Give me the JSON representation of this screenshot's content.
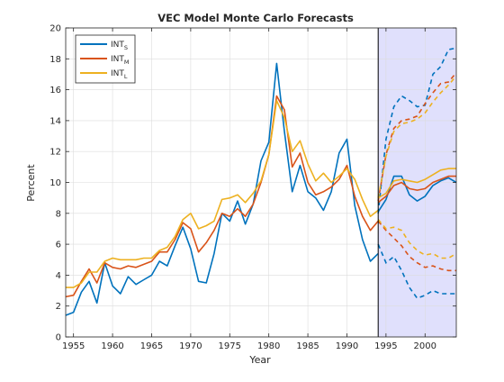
{
  "chart_data": {
    "type": "line",
    "title": "VEC Model Monte Carlo Forecasts",
    "xlabel": "Year",
    "ylabel": "Percent",
    "xlim": [
      1954,
      2004
    ],
    "ylim": [
      0,
      20
    ],
    "xticks": [
      1955,
      1960,
      1965,
      1970,
      1975,
      1980,
      1985,
      1990,
      1995,
      2000
    ],
    "yticks": [
      0,
      2,
      4,
      6,
      8,
      10,
      12,
      14,
      16,
      18,
      20
    ],
    "grid": true,
    "legend_position": "top-left",
    "forecast_start": 1994,
    "forecast_shading_color": "#e0e0fc",
    "series": [
      {
        "name": "INT_S",
        "legend_main": "INT",
        "legend_sub": "S",
        "color": "#0072bd",
        "x": [
          1954,
          1955,
          1956,
          1957,
          1958,
          1959,
          1960,
          1961,
          1962,
          1963,
          1964,
          1965,
          1966,
          1967,
          1968,
          1969,
          1970,
          1971,
          1972,
          1973,
          1974,
          1975,
          1976,
          1977,
          1978,
          1979,
          1980,
          1981,
          1982,
          1983,
          1984,
          1985,
          1986,
          1987,
          1988,
          1989,
          1990,
          1991,
          1992,
          1993,
          1994
        ],
        "values": [
          1.4,
          1.6,
          2.9,
          3.6,
          2.2,
          4.8,
          3.3,
          2.8,
          3.9,
          3.4,
          3.7,
          4.0,
          4.9,
          4.6,
          5.9,
          7.1,
          5.7,
          3.6,
          3.5,
          5.4,
          8.0,
          7.5,
          8.8,
          7.3,
          8.6,
          11.4,
          12.6,
          17.7,
          13.3,
          9.4,
          11.1,
          9.4,
          9.0,
          8.2,
          9.4,
          11.9,
          12.8,
          8.5,
          6.3,
          4.9,
          5.4
        ]
      },
      {
        "name": "INT_M",
        "legend_main": "INT",
        "legend_sub": "M",
        "color": "#d95319",
        "x": [
          1954,
          1955,
          1956,
          1957,
          1958,
          1959,
          1960,
          1961,
          1962,
          1963,
          1964,
          1965,
          1966,
          1967,
          1968,
          1969,
          1970,
          1971,
          1972,
          1973,
          1974,
          1975,
          1976,
          1977,
          1978,
          1979,
          1980,
          1981,
          1982,
          1983,
          1984,
          1985,
          1986,
          1987,
          1988,
          1989,
          1990,
          1991,
          1992,
          1993,
          1994
        ],
        "values": [
          2.6,
          2.7,
          3.6,
          4.4,
          3.5,
          4.8,
          4.5,
          4.4,
          4.6,
          4.5,
          4.7,
          4.9,
          5.5,
          5.5,
          6.3,
          7.4,
          7.0,
          5.5,
          6.1,
          6.9,
          8.0,
          7.8,
          8.3,
          7.8,
          8.6,
          10.0,
          11.8,
          15.6,
          14.7,
          11.0,
          11.9,
          10.0,
          9.2,
          9.4,
          9.7,
          10.2,
          11.1,
          9.1,
          7.8,
          6.9,
          7.5
        ]
      },
      {
        "name": "INT_L",
        "legend_main": "INT",
        "legend_sub": "L",
        "color": "#edb120",
        "x": [
          1954,
          1955,
          1956,
          1957,
          1958,
          1959,
          1960,
          1961,
          1962,
          1963,
          1964,
          1965,
          1966,
          1967,
          1968,
          1969,
          1970,
          1971,
          1972,
          1973,
          1974,
          1975,
          1976,
          1977,
          1978,
          1979,
          1980,
          1981,
          1982,
          1983,
          1984,
          1985,
          1986,
          1987,
          1988,
          1989,
          1990,
          1991,
          1992,
          1993,
          1994
        ],
        "values": [
          3.2,
          3.2,
          3.5,
          4.2,
          4.2,
          4.9,
          5.1,
          5.0,
          5.0,
          5.0,
          5.1,
          5.1,
          5.6,
          5.8,
          6.5,
          7.6,
          8.0,
          7.0,
          7.2,
          7.5,
          8.9,
          9.0,
          9.2,
          8.7,
          9.3,
          10.1,
          11.8,
          15.3,
          14.2,
          12.0,
          12.7,
          11.2,
          10.1,
          10.6,
          10.0,
          10.4,
          10.9,
          10.2,
          8.9,
          7.8,
          8.2
        ]
      }
    ],
    "forecasts": [
      {
        "series": "INT_S",
        "x": [
          1994,
          1995,
          1996,
          1997,
          1998,
          1999,
          2000,
          2001,
          2002,
          2003,
          2004
        ],
        "mean": [
          8.1,
          8.9,
          10.4,
          10.4,
          9.2,
          8.8,
          9.1,
          9.8,
          10.1,
          10.3,
          10.0
        ],
        "upper": [
          8.0,
          12.8,
          14.9,
          15.6,
          15.3,
          14.9,
          15.0,
          17.0,
          17.5,
          18.6,
          18.7
        ],
        "lower": [
          6.0,
          4.8,
          5.2,
          4.3,
          3.2,
          2.5,
          2.7,
          3.0,
          2.8,
          2.8,
          2.8
        ]
      },
      {
        "series": "INT_M",
        "x": [
          1994,
          1995,
          1996,
          1997,
          1998,
          1999,
          2000,
          2001,
          2002,
          2003,
          2004
        ],
        "mean": [
          8.7,
          9.1,
          9.8,
          10.0,
          9.6,
          9.5,
          9.6,
          10.0,
          10.2,
          10.4,
          10.4
        ],
        "upper": [
          8.8,
          11.8,
          13.5,
          14.0,
          14.1,
          14.3,
          15.1,
          15.8,
          16.4,
          16.5,
          17.1
        ],
        "lower": [
          7.5,
          6.9,
          6.4,
          5.9,
          5.2,
          4.8,
          4.5,
          4.6,
          4.4,
          4.3,
          4.3
        ]
      },
      {
        "series": "INT_L",
        "x": [
          1994,
          1995,
          1996,
          1997,
          1998,
          1999,
          2000,
          2001,
          2002,
          2003,
          2004
        ],
        "mean": [
          9.0,
          9.3,
          10.1,
          10.2,
          10.1,
          10.0,
          10.2,
          10.5,
          10.8,
          10.9,
          10.9
        ],
        "upper": [
          9.0,
          11.7,
          13.3,
          13.8,
          13.9,
          14.1,
          14.5,
          15.2,
          15.8,
          16.3,
          16.9
        ],
        "lower": [
          7.6,
          7.0,
          7.1,
          6.9,
          6.1,
          5.6,
          5.3,
          5.4,
          5.1,
          5.1,
          5.4
        ]
      }
    ]
  }
}
